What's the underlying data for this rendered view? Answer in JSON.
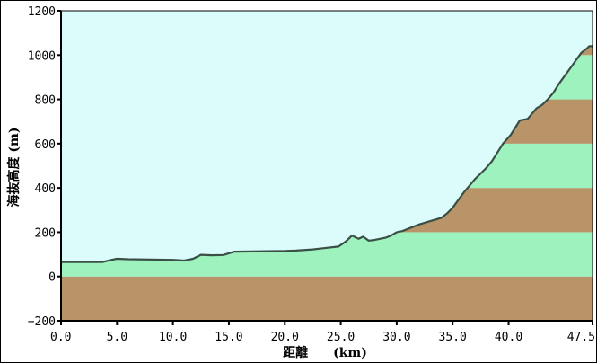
{
  "chart_data": {
    "type": "area",
    "title": "",
    "xlabel": "距離　　(km)",
    "ylabel": "海抜高度 (m)",
    "xlim": [
      0,
      47.5
    ],
    "ylim": [
      -200,
      1200
    ],
    "x_ticks": [
      0.0,
      5.0,
      10.0,
      15.0,
      20.0,
      25.0,
      30.0,
      35.0,
      40.0,
      47.5
    ],
    "x_tick_labels": [
      "0.0",
      "5.0",
      "10.0",
      "15.0",
      "20.0",
      "25.0",
      "30.0",
      "35.0",
      "40.0",
      "47.5"
    ],
    "y_ticks": [
      -200,
      0,
      200,
      400,
      600,
      800,
      1000,
      1200
    ],
    "y_tick_labels": [
      "-200",
      "0",
      "200",
      "400",
      "600",
      "800",
      "1000",
      "1200"
    ],
    "grid": false,
    "legend": null,
    "band_interval_m": 200,
    "colors": {
      "sky": "#dcfcfc",
      "band_green": "#9ef2be",
      "band_brown": "#b89468",
      "profile_line": "#3a5046"
    },
    "series": [
      {
        "name": "elevation_profile",
        "x": [
          0.0,
          3.7,
          4.5,
          5.0,
          6.0,
          10.0,
          11.0,
          11.8,
          12.5,
          13.5,
          14.5,
          15.5,
          17.0,
          20.0,
          21.0,
          22.5,
          23.5,
          24.8,
          25.5,
          26.0,
          26.6,
          27.0,
          27.5,
          28.0,
          29.0,
          29.5,
          30.0,
          30.5,
          31.0,
          32.0,
          33.0,
          34.0,
          34.5,
          35.0,
          35.5,
          36.0,
          36.5,
          37.0,
          37.5,
          38.0,
          38.5,
          39.0,
          39.5,
          40.2,
          41.0,
          41.7,
          42.0,
          42.5,
          43.0,
          43.5,
          44.0,
          44.5,
          45.0,
          45.5,
          46.0,
          46.5,
          47.0,
          47.2,
          47.5
        ],
        "y": [
          65,
          65,
          75,
          80,
          78,
          75,
          72,
          80,
          98,
          96,
          97,
          112,
          113,
          115,
          117,
          122,
          128,
          135,
          160,
          185,
          170,
          180,
          162,
          165,
          175,
          185,
          200,
          205,
          215,
          235,
          250,
          265,
          285,
          310,
          345,
          380,
          410,
          440,
          465,
          490,
          520,
          560,
          600,
          640,
          705,
          712,
          730,
          760,
          775,
          800,
          830,
          870,
          905,
          940,
          975,
          1010,
          1030,
          1040,
          1040
        ]
      }
    ]
  }
}
